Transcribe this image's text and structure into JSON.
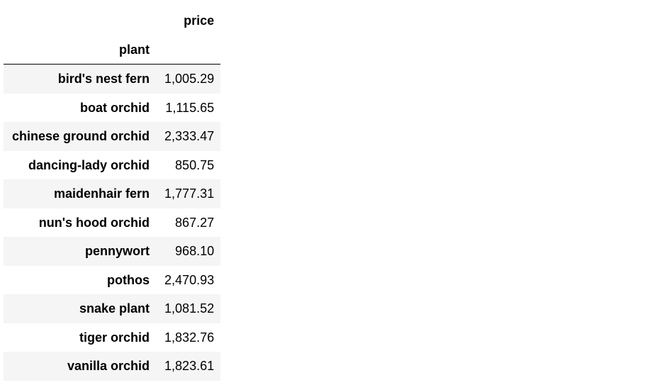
{
  "table": {
    "column_header": "price",
    "index_name": "plant",
    "rows": [
      {
        "plant": "bird's nest fern",
        "price": "1,005.29"
      },
      {
        "plant": "boat orchid",
        "price": "1,115.65"
      },
      {
        "plant": "chinese ground orchid",
        "price": "2,333.47"
      },
      {
        "plant": "dancing-lady orchid",
        "price": "850.75"
      },
      {
        "plant": "maidenhair fern",
        "price": "1,777.31"
      },
      {
        "plant": "nun's hood orchid",
        "price": "867.27"
      },
      {
        "plant": "pennywort",
        "price": "968.10"
      },
      {
        "plant": "pothos",
        "price": "2,470.93"
      },
      {
        "plant": "snake plant",
        "price": "1,081.52"
      },
      {
        "plant": "tiger orchid",
        "price": "1,832.76"
      },
      {
        "plant": "vanilla orchid",
        "price": "1,823.61"
      }
    ]
  }
}
